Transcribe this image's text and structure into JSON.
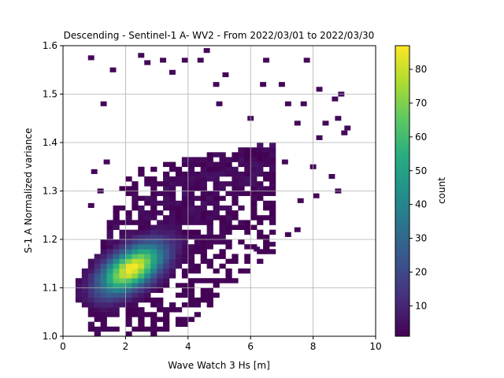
{
  "chart_data": {
    "type": "heatmap",
    "title": "Descending - Sentinel-1 A- WV2 - From 2022/03/01 to 2022/03/30",
    "xlabel": "Wave Watch 3 Hs [m]",
    "ylabel": "S-1 A Normalized variance",
    "xlim": [
      0,
      10
    ],
    "ylim": [
      1.0,
      1.6
    ],
    "xticks": [
      "0",
      "2",
      "4",
      "6",
      "8",
      "10"
    ],
    "yticks": [
      "1.0",
      "1.1",
      "1.2",
      "1.3",
      "1.4",
      "1.5",
      "1.6"
    ],
    "grid": true,
    "colormap": "viridis",
    "colorbar": {
      "label": "count",
      "range": [
        1,
        87
      ],
      "ticks": [
        "10",
        "20",
        "30",
        "40",
        "50",
        "60",
        "70",
        "80"
      ]
    },
    "bin_width_x": 0.2,
    "bin_height_y": 0.01,
    "peak": {
      "x": 2.2,
      "y": 1.14,
      "count": 87
    },
    "density_core": {
      "center": [
        2.2,
        1.14
      ],
      "spread_x": 0.7,
      "spread_y": 0.035,
      "correlation": 0.55
    },
    "scattered_bins": [
      [
        0.9,
        1.575
      ],
      [
        2.7,
        1.565
      ],
      [
        3.2,
        1.57
      ],
      [
        4.4,
        1.57
      ],
      [
        4.6,
        1.59
      ],
      [
        6.5,
        1.57
      ],
      [
        7.8,
        1.57
      ],
      [
        1.6,
        1.55
      ],
      [
        3.5,
        1.545
      ],
      [
        5.2,
        1.54
      ],
      [
        4.9,
        1.52
      ],
      [
        6.4,
        1.52
      ],
      [
        7.0,
        1.52
      ],
      [
        8.2,
        1.51
      ],
      [
        8.9,
        1.5
      ],
      [
        8.7,
        1.49
      ],
      [
        7.2,
        1.48
      ],
      [
        7.7,
        1.48
      ],
      [
        8.8,
        1.45
      ],
      [
        9.1,
        1.43
      ],
      [
        8.4,
        1.44
      ],
      [
        9.0,
        1.42
      ],
      [
        7.5,
        1.44
      ],
      [
        8.2,
        1.41
      ],
      [
        1.0,
        1.34
      ],
      [
        1.4,
        1.36
      ],
      [
        8.0,
        1.35
      ],
      [
        8.6,
        1.33
      ],
      [
        8.1,
        1.29
      ],
      [
        8.8,
        1.3
      ],
      [
        7.6,
        1.28
      ],
      [
        7.2,
        1.21
      ],
      [
        7.5,
        1.22
      ],
      [
        6.7,
        1.19
      ],
      [
        6.2,
        1.18
      ],
      [
        1.2,
        1.3
      ],
      [
        0.9,
        1.27
      ],
      [
        2.5,
        1.58
      ],
      [
        6.0,
        1.45
      ],
      [
        6.6,
        1.36
      ],
      [
        7.1,
        1.36
      ],
      [
        3.9,
        1.57
      ],
      [
        5.0,
        1.48
      ],
      [
        1.3,
        1.48
      ]
    ]
  }
}
